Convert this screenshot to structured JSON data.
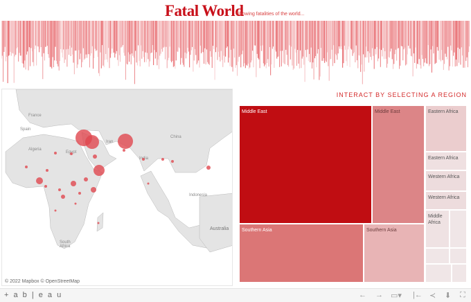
{
  "header": {
    "title": "Fatal World",
    "subtitle": "Showing fatalities of the world..."
  },
  "colors": {
    "accent": "#c8101a",
    "land": "#e4e4e4",
    "bubble": "#e0474f"
  },
  "map": {
    "labels": [
      "France",
      "Spain",
      "Algeria",
      "Egypt",
      "Iran",
      "China",
      "India",
      "Indonesia",
      "Australia",
      "South Africa"
    ],
    "attribution": "© 2022 Mapbox © OpenStreetMap"
  },
  "treemap": {
    "heading": "INTERACT BY SELECTING A REGION",
    "cells": [
      {
        "label": "Middle East",
        "color": "#c00d12",
        "text": "#ffffff"
      },
      {
        "label": "Middle East",
        "color": "#dc8587",
        "text": "#6b3b3b"
      },
      {
        "label": "Southern Asia",
        "color": "#db7676",
        "text": "#ffffff"
      },
      {
        "label": "Southern Asia",
        "color": "#e8b4b5",
        "text": "#6b3b3b"
      },
      {
        "label": "Eastern Africa",
        "color": "#ebcdce",
        "text": "#555"
      },
      {
        "label": "Eastern Africa",
        "color": "#efe0e1",
        "text": "#555"
      },
      {
        "label": "Western Africa",
        "color": "#eddcdd",
        "text": "#555"
      },
      {
        "label": "Western Africa",
        "color": "#eddcdd",
        "text": "#555"
      },
      {
        "label": "Middle Africa",
        "color": "#efe2e3",
        "text": "#555"
      }
    ]
  },
  "footer": {
    "logo": "+ a b | e a u",
    "icons": [
      "undo-icon",
      "redo-icon",
      "revert-icon",
      "pause-icon",
      "reset-icon",
      "share-icon",
      "download-icon",
      "fullscreen-icon"
    ]
  }
}
